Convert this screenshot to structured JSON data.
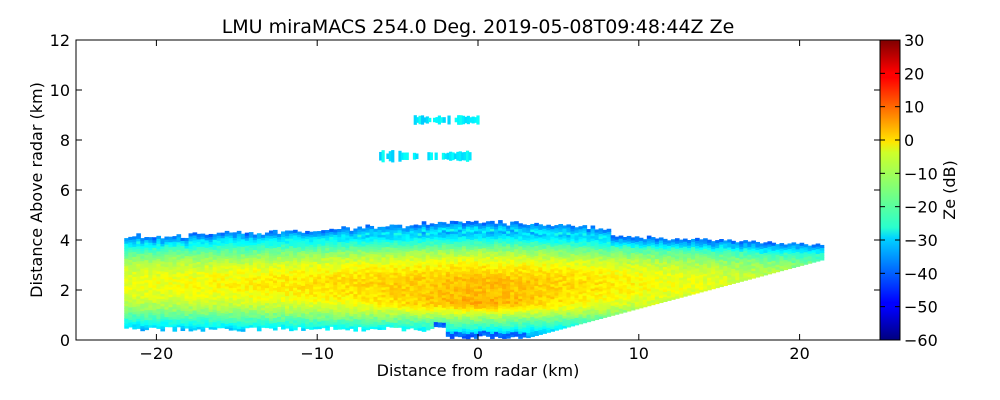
{
  "chart_data": {
    "type": "heatmap",
    "title": "LMU miraMACS 254.0 Deg. 2019-05-08T09:48:44Z  Ze",
    "xlabel": "Distance from radar (km)",
    "ylabel": "Distance Above radar  (km)",
    "xlim": [
      -25,
      25
    ],
    "ylim": [
      0,
      12
    ],
    "xticks": [
      -20,
      -10,
      0,
      10,
      20
    ],
    "yticks": [
      0,
      2,
      4,
      6,
      8,
      10,
      12
    ],
    "xtick_labels": [
      "−20",
      "−10",
      "0",
      "10",
      "20"
    ],
    "ytick_labels": [
      "0",
      "2",
      "4",
      "6",
      "8",
      "10",
      "12"
    ],
    "grid": false,
    "colorbar": {
      "label": "Ze (dB)",
      "range": [
        -60,
        30
      ],
      "ticks": [
        -60,
        -50,
        -40,
        -30,
        -20,
        -10,
        0,
        10,
        20,
        30
      ],
      "tick_labels": [
        "−60",
        "−50",
        "−40",
        "−30",
        "−20",
        "−10",
        "0",
        "10",
        "20",
        "30"
      ],
      "colormap": "jet"
    },
    "regions": [
      {
        "name": "main-echo",
        "x_range": [
          -22,
          21.3
        ],
        "top_height_km": [
          4.1,
          4.7
        ],
        "bottom_height_km": [
          0.4,
          0.8
        ],
        "ze_dB_range": [
          -35,
          12
        ]
      },
      {
        "name": "upper-cloud-lower",
        "x_range": [
          -6.3,
          -0.3
        ],
        "height_km": [
          7.1,
          7.6
        ],
        "ze_dB": -28
      },
      {
        "name": "upper-cloud-upper",
        "x_range": [
          -4,
          0
        ],
        "height_km": [
          8.6,
          9.0
        ],
        "ze_dB": -28
      }
    ]
  }
}
